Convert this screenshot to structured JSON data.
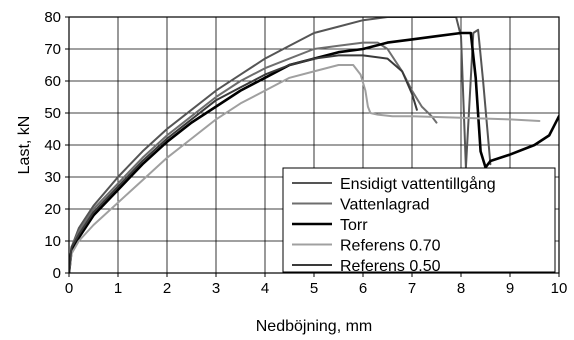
{
  "chart_data": {
    "type": "line",
    "xlabel": "Nedböjning, mm",
    "ylabel": "Last, kN",
    "xlim": [
      0,
      10
    ],
    "ylim": [
      0,
      80
    ],
    "x_ticks": [
      "0",
      "1",
      "2",
      "3",
      "4",
      "5",
      "6",
      "7",
      "8",
      "9",
      "10"
    ],
    "y_ticks": [
      "0",
      "10",
      "20",
      "30",
      "40",
      "50",
      "60",
      "70",
      "80"
    ],
    "grid": true,
    "legend_position": "bottom-right",
    "series": [
      {
        "name": "Ensidigt vattentillgång",
        "color": "#555555",
        "x": [
          0,
          0.05,
          0.2,
          0.5,
          1.0,
          1.5,
          2.0,
          2.5,
          3.0,
          3.5,
          4.0,
          4.5,
          5.0,
          5.5,
          6.0,
          6.5,
          7.0,
          7.5,
          7.9,
          8.0,
          8.1,
          8.25,
          8.35,
          8.45,
          8.6
        ],
        "y": [
          0,
          8,
          14,
          21,
          30,
          38,
          45,
          51,
          57,
          62,
          67,
          71,
          75,
          77,
          79,
          80,
          80,
          80,
          80,
          74,
          33,
          75,
          76,
          60,
          34
        ]
      },
      {
        "name": "Vattenlagrad",
        "color": "#6e6e6e",
        "x": [
          0,
          0.05,
          0.2,
          0.5,
          1.0,
          1.5,
          2.0,
          2.5,
          3.0,
          3.5,
          4.0,
          4.5,
          5.0,
          5.5,
          6.0,
          6.3,
          6.5,
          6.8,
          7.0,
          7.2,
          7.4,
          7.5
        ],
        "y": [
          0,
          8,
          13,
          20,
          28,
          36,
          43,
          49,
          55,
          60,
          64,
          67,
          70,
          71,
          72,
          72,
          70,
          63,
          57,
          52,
          49,
          47
        ]
      },
      {
        "name": "Torr",
        "color": "#000000",
        "x": [
          0,
          0.05,
          0.2,
          0.5,
          1.0,
          1.5,
          2.0,
          2.5,
          3.0,
          3.5,
          4.0,
          4.5,
          5.0,
          5.5,
          6.0,
          6.5,
          7.0,
          7.5,
          8.0,
          8.2,
          8.3,
          8.4,
          8.5,
          8.6,
          9.0,
          9.5,
          9.8,
          10.0
        ],
        "y": [
          0,
          7,
          11,
          18,
          26,
          34,
          41,
          47,
          52,
          57,
          61,
          65,
          67,
          69,
          70,
          72,
          73,
          74,
          75,
          75,
          61,
          38,
          33,
          35,
          37,
          40,
          43,
          49
        ]
      },
      {
        "name": "Referens 0.70",
        "color": "#a0a0a0",
        "x": [
          0,
          0.05,
          0.2,
          0.5,
          1.0,
          1.5,
          2.0,
          2.5,
          3.0,
          3.5,
          4.0,
          4.5,
          5.0,
          5.5,
          5.8,
          5.95,
          6.05,
          6.1,
          6.15,
          6.3,
          6.6,
          7.0,
          8.0,
          9.0,
          9.6
        ],
        "y": [
          0,
          6,
          10,
          15,
          22,
          29,
          36,
          42,
          48,
          53,
          57,
          61,
          63,
          65,
          65,
          62,
          57,
          52,
          50,
          49.5,
          49,
          49,
          48.5,
          48,
          47.5
        ]
      },
      {
        "name": "Referens 0.50",
        "color": "#3a3a3a",
        "x": [
          0,
          0.05,
          0.2,
          0.5,
          1.0,
          1.5,
          2.0,
          2.5,
          3.0,
          3.5,
          4.0,
          4.5,
          5.0,
          5.5,
          6.0,
          6.5,
          6.8,
          7.0,
          7.1
        ],
        "y": [
          0,
          8,
          12,
          19,
          27,
          35,
          42,
          48,
          54,
          58,
          62,
          65,
          67,
          68,
          68,
          67,
          63,
          56,
          51
        ]
      }
    ]
  }
}
